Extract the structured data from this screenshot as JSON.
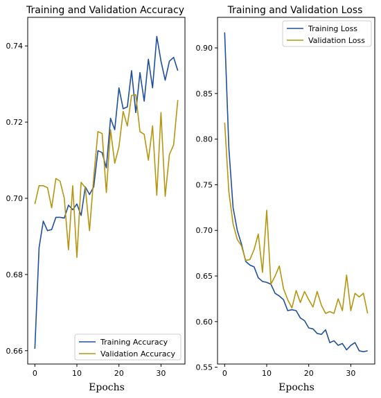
{
  "chart_data": [
    {
      "type": "line",
      "title": "Training and Validation Accuracy",
      "xlabel": "Epochs",
      "ylabel": "",
      "xlim": [
        -1.7,
        35.7
      ],
      "ylim": [
        0.6565,
        0.7475
      ],
      "xticks": [
        0,
        10,
        20,
        30
      ],
      "yticks": [
        0.66,
        0.68,
        0.7,
        0.72,
        0.74
      ],
      "ytick_labels": [
        "0.66",
        "0.68",
        "0.70",
        "0.72",
        "0.74"
      ],
      "legend_position": "lower-right",
      "grid": false,
      "series": [
        {
          "name": "Training Accuracy",
          "color": "#1f4e9c",
          "x": [
            0,
            1,
            2,
            3,
            4,
            5,
            6,
            7,
            8,
            9,
            10,
            11,
            12,
            13,
            14,
            15,
            16,
            17,
            18,
            19,
            20,
            21,
            22,
            23,
            24,
            25,
            26,
            27,
            28,
            29,
            30,
            31,
            32,
            33,
            34
          ],
          "values": [
            0.6605,
            0.687,
            0.694,
            0.6915,
            0.6918,
            0.695,
            0.695,
            0.6948,
            0.6982,
            0.697,
            0.6985,
            0.6955,
            0.703,
            0.701,
            0.703,
            0.7125,
            0.712,
            0.708,
            0.721,
            0.718,
            0.729,
            0.7235,
            0.724,
            0.7335,
            0.7225,
            0.733,
            0.7255,
            0.7365,
            0.729,
            0.7425,
            0.736,
            0.731,
            0.736,
            0.737,
            0.7335
          ]
        },
        {
          "name": "Validation Accuracy",
          "color": "#b5950f",
          "x": [
            0,
            1,
            2,
            3,
            4,
            5,
            6,
            7,
            8,
            9,
            10,
            11,
            12,
            13,
            14,
            15,
            16,
            17,
            18,
            19,
            20,
            21,
            22,
            23,
            24,
            25,
            26,
            27,
            28,
            29,
            30,
            31,
            32,
            33,
            34
          ],
          "values": [
            0.6985,
            0.7033,
            0.7033,
            0.7028,
            0.6975,
            0.7052,
            0.7045,
            0.7,
            0.6865,
            0.7033,
            0.6845,
            0.7042,
            0.7028,
            0.6915,
            0.7055,
            0.7175,
            0.717,
            0.7015,
            0.718,
            0.7092,
            0.7135,
            0.7228,
            0.719,
            0.727,
            0.7272,
            0.7175,
            0.7168,
            0.71,
            0.719,
            0.7008,
            0.7225,
            0.7005,
            0.7115,
            0.714,
            0.7258
          ]
        }
      ]
    },
    {
      "type": "line",
      "title": "Training and Validation Loss",
      "xlabel": "Epochs",
      "ylabel": "",
      "xlim": [
        -1.7,
        35.7
      ],
      "ylim": [
        0.5535,
        0.9335
      ],
      "xticks": [
        0,
        10,
        20,
        30
      ],
      "yticks": [
        0.55,
        0.6,
        0.65,
        0.7,
        0.75,
        0.8,
        0.85,
        0.9
      ],
      "ytick_labels": [
        "0.55",
        "0.60",
        "0.65",
        "0.70",
        "0.75",
        "0.80",
        "0.85",
        "0.90"
      ],
      "legend_position": "top-right",
      "grid": false,
      "series": [
        {
          "name": "Training Loss",
          "color": "#1f4e9c",
          "x": [
            0,
            1,
            2,
            3,
            4,
            5,
            6,
            7,
            8,
            9,
            10,
            11,
            12,
            13,
            14,
            15,
            16,
            17,
            18,
            19,
            20,
            21,
            22,
            23,
            24,
            25,
            26,
            27,
            28,
            29,
            30,
            31,
            32,
            33,
            34
          ],
          "values": [
            0.917,
            0.79,
            0.725,
            0.7,
            0.685,
            0.666,
            0.662,
            0.66,
            0.648,
            0.644,
            0.643,
            0.641,
            0.631,
            0.628,
            0.624,
            0.612,
            0.613,
            0.612,
            0.604,
            0.601,
            0.593,
            0.592,
            0.587,
            0.586,
            0.591,
            0.577,
            0.579,
            0.574,
            0.576,
            0.569,
            0.574,
            0.577,
            0.568,
            0.567,
            0.568
          ]
        },
        {
          "name": "Validation Loss",
          "color": "#b5950f",
          "x": [
            0,
            1,
            2,
            3,
            4,
            5,
            6,
            7,
            8,
            9,
            10,
            11,
            12,
            13,
            14,
            15,
            16,
            17,
            18,
            19,
            20,
            21,
            22,
            23,
            24,
            25,
            26,
            27,
            28,
            29,
            30,
            31,
            32,
            33,
            34
          ],
          "values": [
            0.818,
            0.742,
            0.707,
            0.69,
            0.683,
            0.667,
            0.668,
            0.679,
            0.696,
            0.654,
            0.722,
            0.641,
            0.65,
            0.661,
            0.636,
            0.624,
            0.615,
            0.634,
            0.621,
            0.633,
            0.624,
            0.616,
            0.633,
            0.618,
            0.609,
            0.611,
            0.609,
            0.625,
            0.612,
            0.651,
            0.612,
            0.631,
            0.627,
            0.631,
            0.609
          ]
        }
      ]
    }
  ]
}
